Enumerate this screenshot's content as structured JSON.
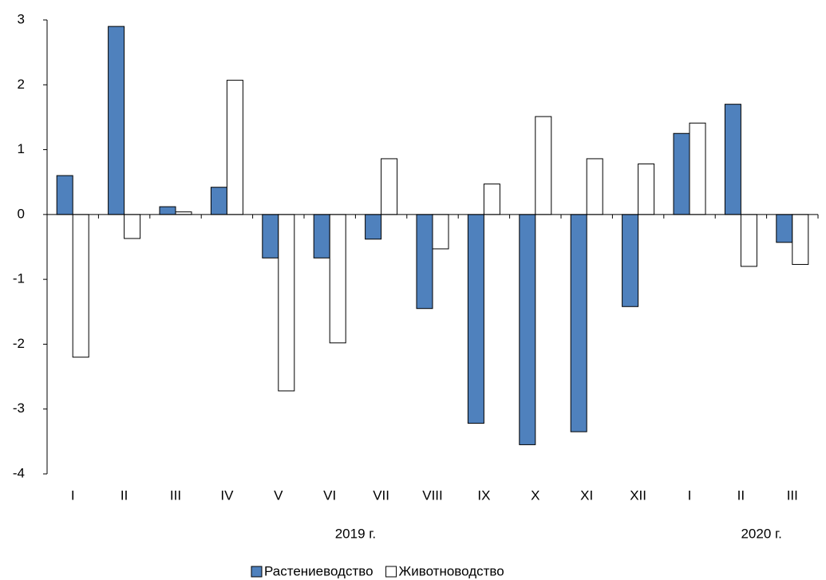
{
  "chart_data": {
    "type": "bar",
    "categories": [
      "I",
      "II",
      "III",
      "IV",
      "V",
      "VI",
      "VII",
      "VIII",
      "IX",
      "X",
      "XI",
      "XII",
      "I",
      "II",
      "III"
    ],
    "series": [
      {
        "name": "Растениеводство",
        "color": "#4f81bd",
        "values": [
          0.6,
          2.9,
          0.12,
          0.42,
          -0.67,
          -0.67,
          -0.38,
          -1.45,
          -3.22,
          -3.55,
          -3.35,
          -1.42,
          1.25,
          1.7,
          -0.43
        ]
      },
      {
        "name": "Животноводство",
        "color": "#ffffff",
        "values": [
          -2.2,
          -0.37,
          0.04,
          2.07,
          -2.72,
          -1.98,
          0.86,
          -0.53,
          0.47,
          1.51,
          0.86,
          0.78,
          1.41,
          -0.8,
          -0.77
        ]
      }
    ],
    "annotations": [
      "2019 г.",
      "2020 г."
    ],
    "ylim": [
      -4,
      3
    ],
    "yticks": [
      -4,
      -3,
      -2,
      -1,
      0,
      1,
      2,
      3
    ],
    "legend": "bottom"
  }
}
